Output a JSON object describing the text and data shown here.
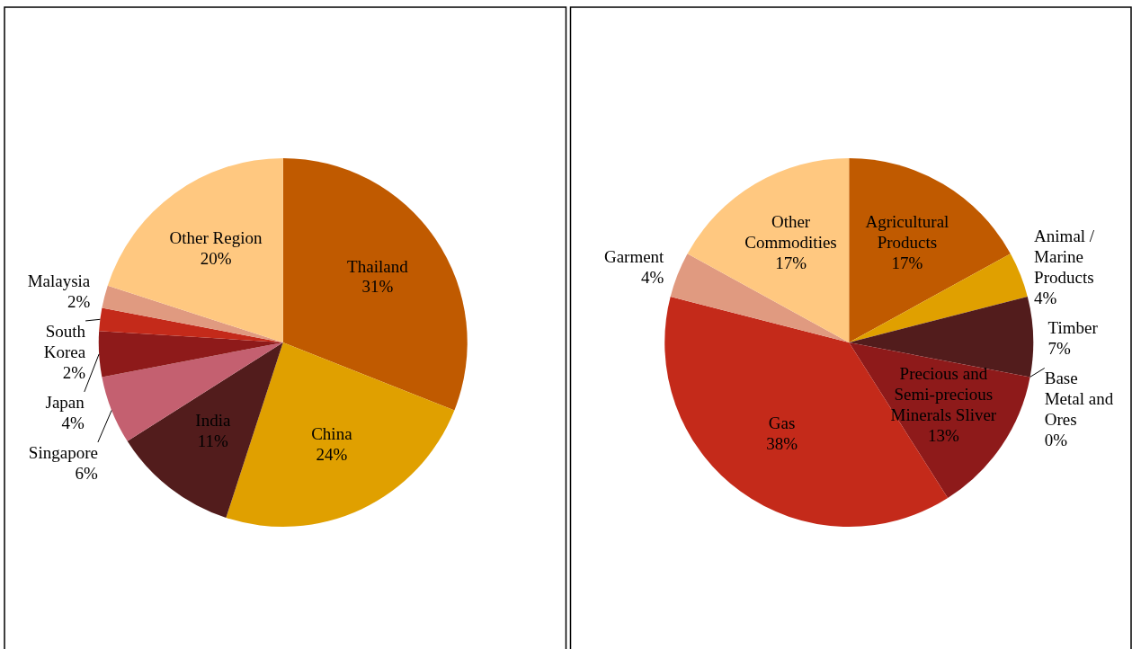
{
  "chart_data": [
    {
      "type": "pie",
      "categories": [
        "Thailand",
        "China",
        "India",
        "Singapore",
        "Japan",
        "South Korea",
        "Malaysia",
        "Other Region"
      ],
      "values": [
        31,
        24,
        11,
        6,
        4,
        2,
        2,
        20
      ],
      "value_labels": [
        "31%",
        "24%",
        "11%",
        "6%",
        "4%",
        "2%",
        "2%",
        "20%"
      ],
      "colors": [
        "#c05a00",
        "#e0a000",
        "#521c1c",
        "#c46070",
        "#8e1a1a",
        "#c42a1a",
        "#e09a80",
        "#ffc880"
      ]
    },
    {
      "type": "pie",
      "categories": [
        "Agricultural Products",
        "Animal / Marine Products",
        "Timber",
        "Base Metal and Ores",
        "Precious and Semi-precious Minerals Sliver",
        "Gas",
        "Garment",
        "Other Commodities"
      ],
      "values": [
        17,
        4,
        7,
        0,
        13,
        38,
        4,
        17
      ],
      "value_labels": [
        "17%",
        "4%",
        "7%",
        "0%",
        "13%",
        "38%",
        "4%",
        "17%"
      ],
      "colors": [
        "#c05a00",
        "#e0a000",
        "#521c1c",
        "#c46070",
        "#8e1a1a",
        "#c42a1a",
        "#e09a80",
        "#ffc880"
      ]
    }
  ]
}
